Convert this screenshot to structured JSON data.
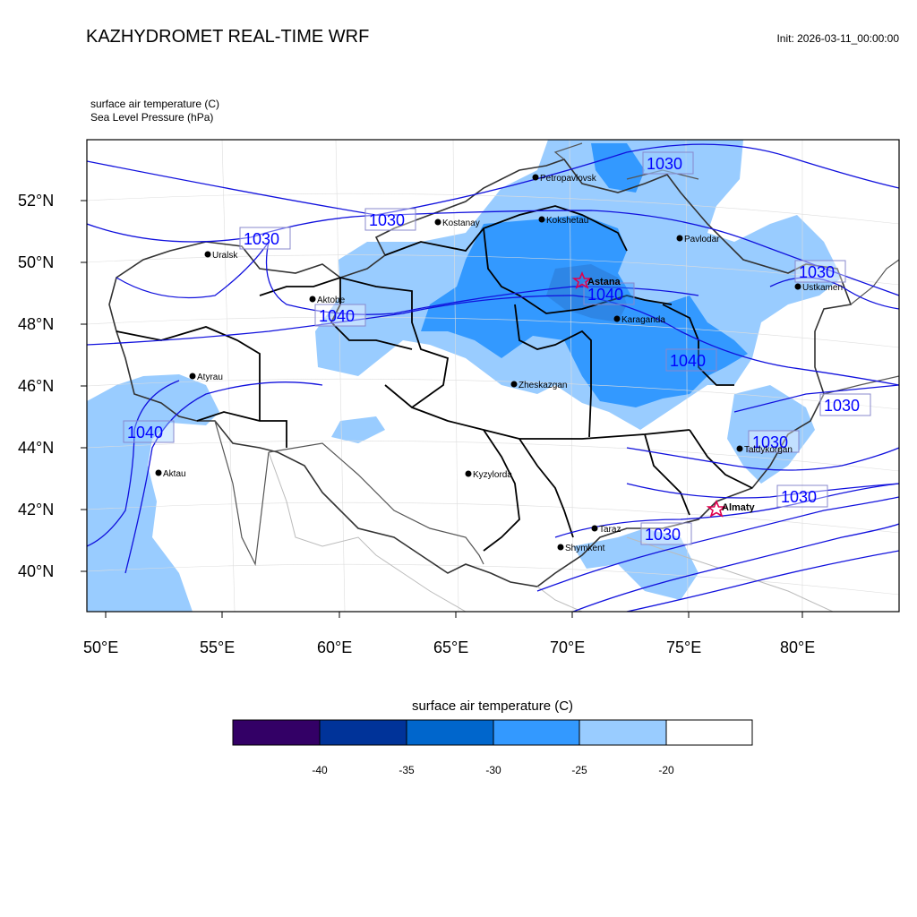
{
  "header": {
    "title": "KAZHYDROMET REAL-TIME WRF",
    "init": "Init: 2026-03-11_00:00:00",
    "var_line_1": "surface air temperature   (C)",
    "var_line_2": "Sea Level Pressure   (hPa)"
  },
  "map": {
    "lat_labels": [
      "52°N",
      "50°N",
      "48°N",
      "46°N",
      "44°N",
      "42°N",
      "40°N"
    ],
    "lon_labels": [
      "50°E",
      "55°E",
      "60°E",
      "65°E",
      "70°E",
      "75°E",
      "80°E"
    ],
    "cities": [
      {
        "name": "Petropavlovsk",
        "capital": false
      },
      {
        "name": "Kostanay",
        "capital": false
      },
      {
        "name": "Kokshetau",
        "capital": false
      },
      {
        "name": "Pavlodar",
        "capital": false
      },
      {
        "name": "Uralsk",
        "capital": false
      },
      {
        "name": "Aktobe",
        "capital": false
      },
      {
        "name": "Astana",
        "capital": true
      },
      {
        "name": "Ustkamen",
        "capital": false
      },
      {
        "name": "Karaganda",
        "capital": false
      },
      {
        "name": "Atyrau",
        "capital": false
      },
      {
        "name": "Zheskazgan",
        "capital": false
      },
      {
        "name": "Taldykorgan",
        "capital": false
      },
      {
        "name": "Aktau",
        "capital": false
      },
      {
        "name": "Kyzylorda",
        "capital": false
      },
      {
        "name": "Almaty",
        "capital": true
      },
      {
        "name": "Taraz",
        "capital": false
      },
      {
        "name": "Shymkent",
        "capital": false
      }
    ],
    "isobar_labels": [
      "1030",
      "1030",
      "1030",
      "1030",
      "1040",
      "1040",
      "1040",
      "1040",
      "1030",
      "1030",
      "1030",
      "1030"
    ]
  },
  "colorbar": {
    "title": "surface air temperature (C)",
    "colors": [
      "#330066",
      "#003399",
      "#0066cc",
      "#3399ff",
      "#99ccff",
      "#ffffff"
    ],
    "ticks": [
      "-40",
      "-35",
      "-30",
      "-25",
      "-20"
    ]
  }
}
